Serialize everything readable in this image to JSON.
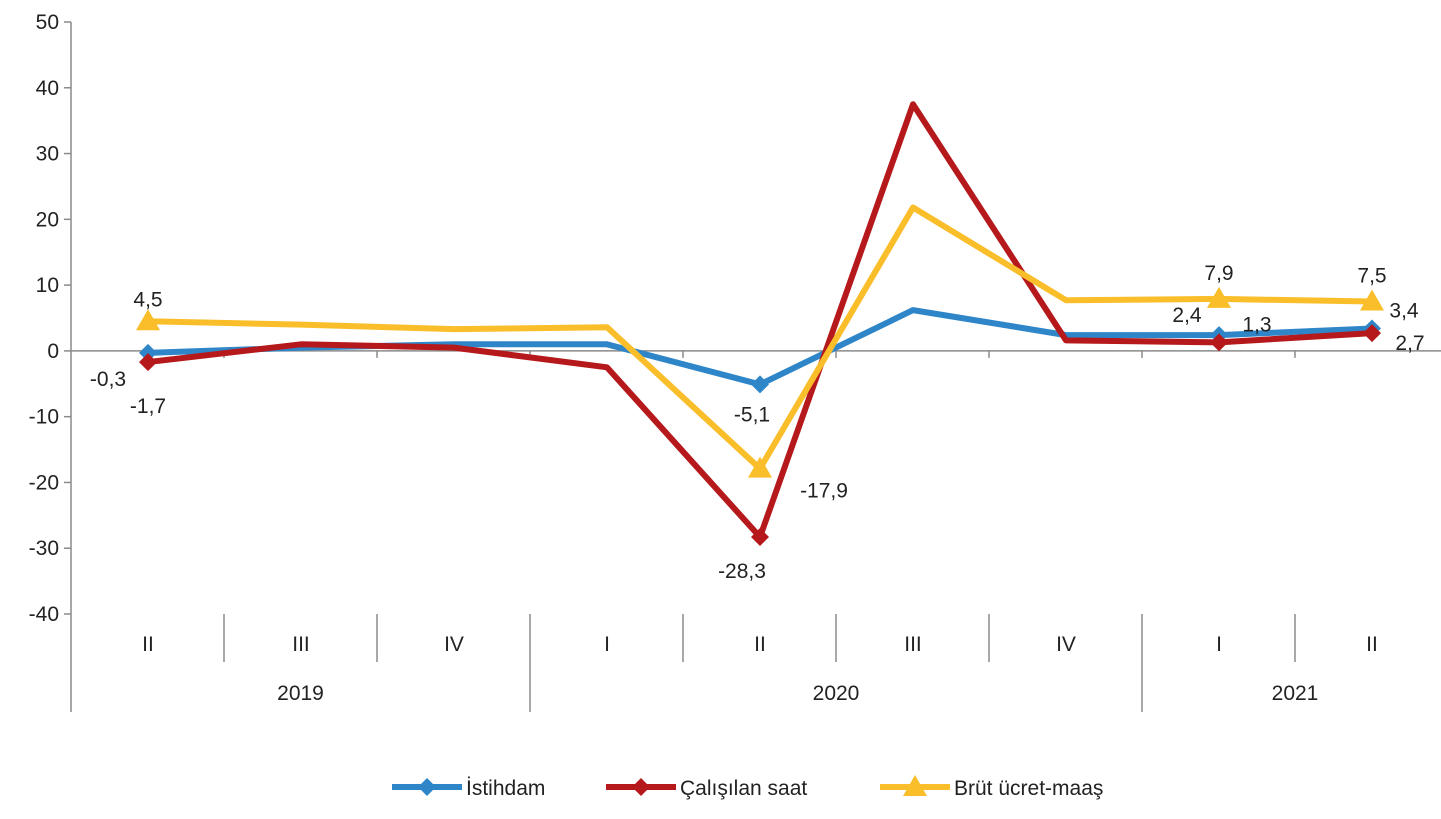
{
  "chart_data": {
    "type": "line",
    "title": "",
    "xlabel": "",
    "ylabel": "",
    "ylim": [
      -40,
      50
    ],
    "yticks": [
      "50",
      "40",
      "30",
      "20",
      "10",
      "0",
      "-10",
      "-20",
      "-30",
      "-40"
    ],
    "categories": [
      "II",
      "III",
      "IV",
      "I",
      "II",
      "III",
      "IV",
      "I",
      "II"
    ],
    "years": [
      {
        "label": "2019",
        "span": [
          0,
          3
        ]
      },
      {
        "label": "2020",
        "span": [
          3,
          7
        ]
      },
      {
        "label": "2021",
        "span": [
          7,
          9
        ]
      }
    ],
    "grid": false,
    "legend_position": "bottom-center",
    "series": [
      {
        "name": "İstihdam",
        "color": "#2E86C9",
        "marker": "diamond",
        "values": [
          -0.3,
          0.5,
          1.0,
          1.0,
          -5.1,
          6.2,
          2.4,
          2.4,
          3.4
        ],
        "labels": [
          "-0,3",
          null,
          null,
          null,
          "-5,1",
          null,
          null,
          "2,4",
          "3,4"
        ]
      },
      {
        "name": "Çalışılan saat",
        "color": "#B5191B",
        "marker": "diamond",
        "values": [
          -1.7,
          1.0,
          0.5,
          -2.5,
          -28.3,
          37.5,
          1.6,
          1.3,
          2.7
        ],
        "labels": [
          "-1,7",
          null,
          null,
          null,
          "-28,3",
          null,
          null,
          "1,3",
          "2,7"
        ]
      },
      {
        "name": "Brüt ücret-maaş",
        "color": "#F9BE2A",
        "marker": "triangle",
        "values": [
          4.5,
          4.0,
          3.3,
          3.6,
          -17.9,
          21.8,
          7.7,
          7.9,
          7.5
        ],
        "labels": [
          "4,5",
          null,
          null,
          null,
          "-17,9",
          null,
          null,
          "7,9",
          "7,5"
        ]
      }
    ]
  }
}
